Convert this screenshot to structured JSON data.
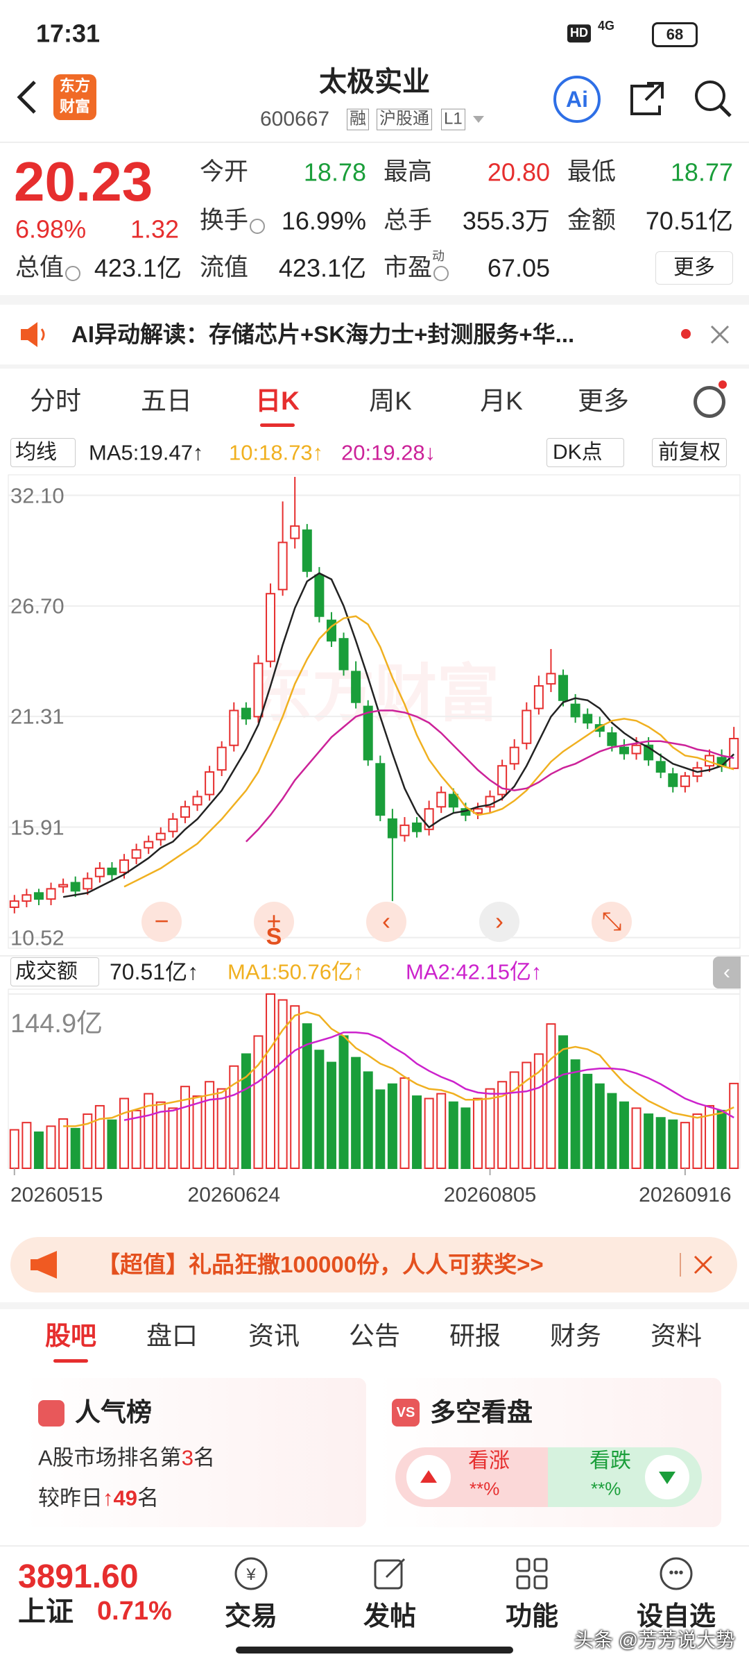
{
  "status_bar": {
    "time": "17:31",
    "hd": "HD",
    "network": "4G",
    "battery": "68"
  },
  "header": {
    "logo": [
      "东方",
      "财富"
    ],
    "title": "太极实业",
    "code": "600667",
    "badges": [
      "融",
      "沪股通",
      "L1"
    ],
    "ai": "Ai"
  },
  "quote": {
    "price": "20.23",
    "change_pct": "6.98%",
    "change": "1.32",
    "fields": [
      [
        {
          "label": "今开",
          "value": "18.78",
          "tone": "down"
        },
        {
          "label": "最高",
          "value": "20.80",
          "tone": "up"
        },
        {
          "label": "最低",
          "value": "18.77",
          "tone": "down"
        }
      ],
      [
        {
          "label": "换手",
          "value": "16.99%",
          "info_icon": true
        },
        {
          "label": "总手",
          "value": "355.3万"
        },
        {
          "label": "金额",
          "value": "70.51亿"
        }
      ],
      [
        {
          "label": "总值",
          "value": "423.1亿",
          "info_icon": true
        },
        {
          "label": "流值",
          "value": "423.1亿"
        },
        {
          "label": "市盈",
          "label_sup": "动",
          "value": "67.05",
          "info_icon": true
        }
      ]
    ],
    "more": "更多"
  },
  "ai_banner": {
    "text": "AI异动解读：存储芯片+SK海力士+封测服务+华..."
  },
  "period_tabs": {
    "items": [
      "分时",
      "五日",
      "日K",
      "周K",
      "月K",
      "更多"
    ],
    "active": 2
  },
  "kline_toolbar": {
    "indicator": "均线",
    "signal": "DK点",
    "adjust": "前复权"
  },
  "chart_controls": {
    "s_label": "S"
  },
  "volume_toolbar": {
    "indicator": "成交额",
    "current": "70.51亿↑"
  },
  "chart_data": [
    {
      "type": "candlestick",
      "watermark": "东方财富",
      "up_color": "#e62e2e",
      "down_color": "#1a9e3a",
      "grid": true,
      "ylim": [
        10.0,
        33.1
      ],
      "yticks": [
        {
          "value": 32.1,
          "label": "32.10"
        },
        {
          "value": 26.7,
          "label": "26.70"
        },
        21.31,
        15.91,
        10.52
      ],
      "open": [
        12.0,
        12.3,
        12.7,
        12.4,
        13.0,
        13.2,
        12.9,
        13.5,
        13.9,
        13.7,
        14.4,
        14.9,
        15.3,
        15.7,
        16.4,
        17.0,
        17.5,
        18.7,
        19.9,
        21.7,
        21.3,
        24.0,
        27.5,
        30.0,
        30.4,
        28.2,
        26.0,
        25.1,
        23.5,
        21.8,
        19.0,
        16.3,
        15.5,
        16.1,
        15.8,
        16.9,
        17.5,
        16.8,
        16.6,
        16.9,
        17.5,
        19.0,
        20.0,
        21.7,
        22.9,
        23.3,
        21.9,
        21.4,
        20.9,
        20.5,
        19.8,
        19.5,
        19.9,
        19.1,
        18.5,
        17.9,
        18.4,
        18.9,
        19.3,
        18.78
      ],
      "high": [
        12.6,
        12.9,
        12.9,
        13.2,
        13.4,
        13.5,
        13.7,
        14.2,
        14.2,
        14.6,
        15.1,
        15.5,
        15.9,
        16.6,
        17.2,
        17.7,
        18.9,
        20.1,
        22.0,
        22.0,
        24.3,
        27.8,
        31.8,
        33.0,
        30.7,
        28.6,
        26.4,
        25.4,
        24.0,
        22.1,
        19.4,
        16.8,
        16.4,
        16.4,
        17.2,
        17.9,
        17.8,
        17.1,
        17.1,
        17.7,
        19.2,
        20.2,
        22.0,
        23.3,
        24.6,
        23.6,
        22.4,
        21.7,
        21.3,
        20.8,
        20.2,
        20.3,
        20.3,
        19.5,
        18.8,
        18.6,
        19.1,
        19.7,
        19.7,
        20.8
      ],
      "low": [
        11.7,
        12.0,
        12.1,
        12.1,
        12.7,
        12.5,
        12.6,
        13.2,
        13.3,
        13.4,
        14.1,
        14.6,
        15.0,
        15.4,
        16.1,
        16.7,
        17.2,
        18.4,
        19.6,
        20.9,
        21.0,
        23.7,
        27.2,
        29.5,
        28.1,
        25.9,
        24.7,
        23.3,
        21.7,
        18.9,
        16.2,
        12.3,
        15.2,
        15.4,
        15.5,
        16.6,
        16.6,
        16.2,
        16.3,
        16.6,
        17.2,
        18.7,
        19.7,
        21.4,
        22.5,
        21.8,
        21.0,
        20.7,
        20.3,
        19.6,
        19.2,
        19.2,
        18.9,
        18.3,
        17.6,
        17.6,
        18.1,
        18.6,
        18.6,
        18.77
      ],
      "close": [
        12.3,
        12.6,
        12.4,
        12.9,
        13.1,
        12.8,
        13.4,
        13.9,
        13.6,
        14.3,
        14.8,
        15.2,
        15.6,
        16.3,
        16.9,
        17.4,
        18.6,
        19.8,
        21.6,
        21.2,
        23.9,
        27.3,
        29.8,
        30.6,
        28.4,
        26.2,
        25.0,
        23.6,
        22.0,
        19.2,
        16.5,
        15.4,
        16.0,
        15.7,
        16.8,
        17.6,
        16.9,
        16.5,
        16.8,
        17.4,
        18.9,
        19.8,
        21.6,
        22.8,
        23.4,
        22.1,
        21.3,
        21.0,
        20.6,
        19.9,
        19.5,
        19.9,
        19.2,
        18.6,
        17.9,
        18.4,
        18.8,
        19.4,
        18.9,
        20.23
      ],
      "series": [
        {
          "name": "MA5:19.47↑",
          "color": "#222222",
          "values": [
            null,
            null,
            null,
            null,
            12.5,
            12.6,
            12.7,
            13.0,
            13.3,
            13.6,
            14.0,
            14.4,
            14.9,
            15.2,
            15.8,
            16.3,
            17.0,
            17.7,
            18.7,
            19.7,
            20.9,
            22.8,
            24.8,
            26.6,
            27.9,
            28.3,
            28.0,
            26.7,
            25.0,
            23.2,
            21.3,
            19.5,
            17.8,
            16.6,
            15.9,
            16.3,
            16.6,
            16.7,
            16.9,
            17.0,
            17.3,
            17.9,
            18.9,
            20.1,
            21.3,
            22.0,
            22.2,
            22.1,
            21.7,
            21.0,
            20.5,
            20.1,
            19.8,
            19.4,
            19.0,
            18.8,
            18.6,
            18.7,
            18.9,
            19.47
          ]
        },
        {
          "name": "10:18.73↑",
          "color": "#f0b020",
          "values": [
            null,
            null,
            null,
            null,
            null,
            null,
            null,
            null,
            null,
            13.0,
            13.3,
            13.6,
            13.9,
            14.3,
            14.7,
            15.1,
            15.7,
            16.3,
            17.0,
            17.7,
            18.6,
            19.9,
            21.3,
            22.9,
            24.1,
            25.1,
            25.7,
            26.1,
            26.2,
            25.8,
            24.7,
            23.2,
            21.9,
            20.4,
            19.2,
            18.4,
            17.7,
            16.9,
            16.5,
            16.6,
            16.8,
            17.2,
            17.7,
            18.4,
            19.1,
            19.6,
            20.0,
            20.4,
            20.8,
            21.1,
            21.2,
            21.1,
            20.8,
            20.4,
            19.8,
            19.4,
            19.3,
            19.1,
            18.9,
            18.73
          ]
        },
        {
          "name": "20:19.28↓",
          "color": "#cc2299",
          "values": [
            null,
            null,
            null,
            null,
            null,
            null,
            null,
            null,
            null,
            null,
            null,
            null,
            null,
            null,
            null,
            null,
            null,
            null,
            null,
            15.2,
            15.8,
            16.5,
            17.3,
            18.2,
            18.9,
            19.6,
            20.3,
            20.8,
            21.3,
            21.5,
            21.6,
            21.6,
            21.5,
            21.3,
            21.0,
            20.5,
            19.9,
            19.3,
            18.7,
            18.2,
            17.8,
            17.7,
            17.8,
            18.1,
            18.5,
            18.8,
            19.0,
            19.3,
            19.6,
            19.8,
            19.9,
            20.0,
            20.1,
            20.1,
            20.0,
            19.9,
            19.7,
            19.6,
            19.4,
            19.28
          ]
        }
      ]
    },
    {
      "type": "bar",
      "ylim": [
        0,
        144.9
      ],
      "yticks": [
        {
          "value": 144.9,
          "label": "144.9亿"
        }
      ],
      "categories": [
        "20260515",
        null,
        null,
        null,
        null,
        null,
        null,
        null,
        null,
        null,
        null,
        null,
        null,
        null,
        null,
        null,
        null,
        null,
        "20260624",
        null,
        null,
        null,
        null,
        null,
        null,
        null,
        null,
        null,
        null,
        null,
        null,
        null,
        null,
        null,
        null,
        null,
        null,
        null,
        null,
        "20260805",
        null,
        null,
        null,
        null,
        null,
        null,
        null,
        null,
        null,
        null,
        null,
        null,
        null,
        null,
        null,
        "20260916",
        null,
        null,
        null,
        null
      ],
      "values": [
        32,
        38,
        30,
        35,
        41,
        33,
        45,
        52,
        40,
        58,
        48,
        62,
        55,
        50,
        68,
        60,
        72,
        66,
        85,
        95,
        110,
        144.9,
        140,
        135,
        120,
        98,
        88,
        110,
        92,
        80,
        65,
        70,
        75,
        60,
        58,
        62,
        55,
        50,
        58,
        66,
        72,
        80,
        88,
        95,
        120,
        110,
        90,
        78,
        70,
        62,
        55,
        50,
        45,
        42,
        40,
        38,
        45,
        52,
        48,
        70.51
      ],
      "series": [
        {
          "name": "MA1:50.76亿↑",
          "color": "#f0b020",
          "values": [
            null,
            null,
            null,
            null,
            35,
            35,
            37,
            41,
            42,
            46,
            49,
            52,
            53,
            55,
            57,
            59,
            61,
            63,
            70,
            76,
            86,
            100,
            115,
            127,
            130,
            127,
            116,
            110,
            100,
            94,
            87,
            83,
            76,
            70,
            66,
            65,
            62,
            57,
            57,
            58,
            60,
            65,
            73,
            80,
            91,
            99,
            101,
            99,
            94,
            82,
            71,
            63,
            56,
            51,
            46,
            44,
            42,
            44,
            46,
            50.76
          ]
        },
        {
          "name": "MA2:42.15亿↑",
          "color": "#cc22cc",
          "values": [
            null,
            null,
            null,
            null,
            null,
            null,
            null,
            null,
            null,
            40,
            42,
            44,
            47,
            48,
            51,
            54,
            57,
            58,
            61,
            66,
            72,
            80,
            89,
            98,
            103,
            106,
            109,
            113,
            113,
            112,
            108,
            101,
            95,
            87,
            81,
            76,
            72,
            66,
            63,
            62,
            62,
            63,
            64,
            67,
            73,
            78,
            80,
            82,
            83,
            83,
            82,
            79,
            75,
            70,
            64,
            58,
            54,
            51,
            48,
            42.15
          ]
        }
      ]
    }
  ],
  "promo": {
    "text": "【超值】礼品狂撒100000份，人人可获奖>>"
  },
  "section_tabs": {
    "items": [
      "股吧",
      "盘口",
      "资讯",
      "公告",
      "研报",
      "财务",
      "资料"
    ],
    "active": 0
  },
  "popularity": {
    "title": "人气榜",
    "rank_prefix": "A股市场排名第",
    "rank": "3",
    "rank_suffix": "名",
    "change_prefix": "较昨日",
    "change": "↑49",
    "change_suffix": "名"
  },
  "sentiment": {
    "icon": "VS",
    "title": "多空看盘",
    "bull": {
      "label": "看涨",
      "value": "**%"
    },
    "bear": {
      "label": "看跌",
      "value": "**%"
    }
  },
  "footer": {
    "index_value": "3891.60",
    "index_name": "上证",
    "index_change": "0.71%",
    "nav": [
      "交易",
      "发帖",
      "功能",
      "设自选"
    ],
    "watermark": "头条 @芳芳说大势"
  }
}
